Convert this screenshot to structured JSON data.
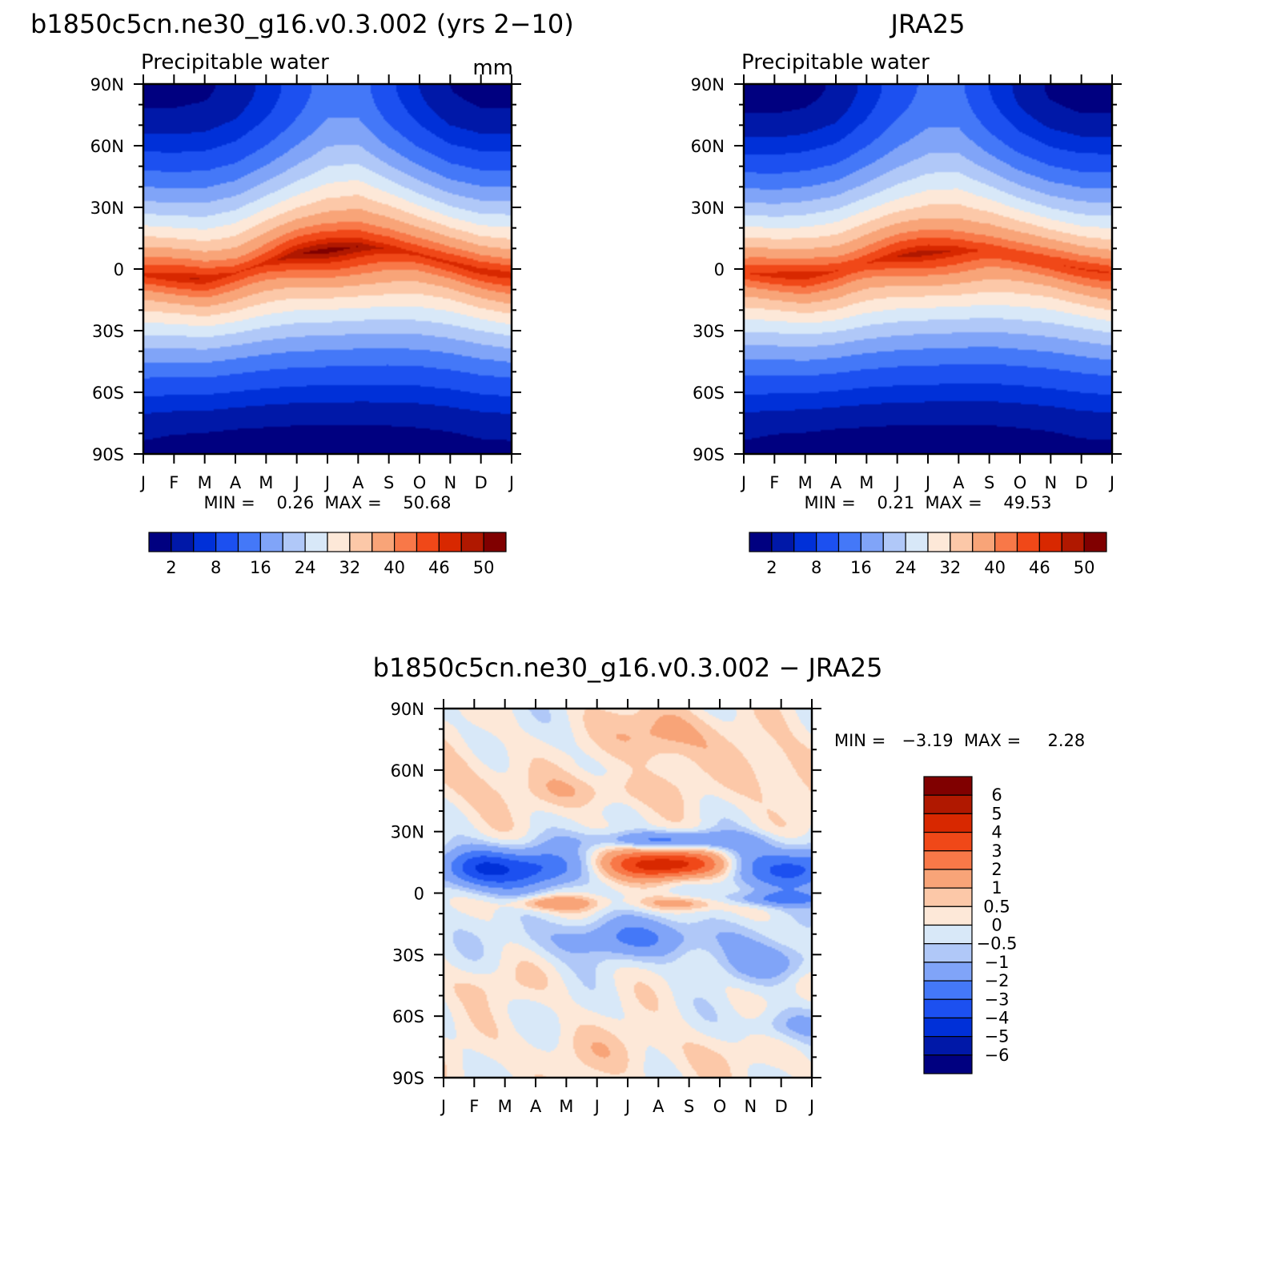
{
  "colors": {
    "seq": [
      "#000080",
      "#0018a8",
      "#0030d8",
      "#1c50f0",
      "#4478f8",
      "#80a4f8",
      "#b0c8f8",
      "#d8e8f8",
      "#fde8d8",
      "#fcc8a8",
      "#f8a478",
      "#f87848",
      "#f04818",
      "#d82800",
      "#b01800",
      "#800000"
    ],
    "diff": [
      "#000080",
      "#0018a8",
      "#0030d8",
      "#1c50f0",
      "#4478f8",
      "#80a4f8",
      "#b0c8f8",
      "#d8e8f8",
      "#fde8d8",
      "#fcc8a8",
      "#f8a478",
      "#f87848",
      "#f04818",
      "#d82800",
      "#b01800",
      "#800000"
    ]
  },
  "months": [
    "J",
    "F",
    "M",
    "A",
    "M",
    "J",
    "J",
    "A",
    "S",
    "O",
    "N",
    "D",
    "J"
  ],
  "lat_labels": [
    "90N",
    "60N",
    "30N",
    "0",
    "30S",
    "60S",
    "90S"
  ],
  "panels": {
    "model": {
      "title": "b1850c5cn.ne30_g16.v0.3.002 (yrs 2−10)",
      "subtitle": "Precipitable water",
      "units": "mm",
      "stats": "MIN =    0.26  MAX =    50.68",
      "colorbar_labels": [
        "2",
        "8",
        "16",
        "24",
        "32",
        "40",
        "46",
        "50"
      ]
    },
    "obs": {
      "title": "JRA25",
      "subtitle": "Precipitable water",
      "units": "",
      "stats": "MIN =    0.21  MAX =    49.53",
      "colorbar_labels": [
        "2",
        "8",
        "16",
        "24",
        "32",
        "40",
        "46",
        "50"
      ]
    },
    "diff": {
      "title": "b1850c5cn.ne30_g16.v0.3.002 − JRA25",
      "stats": "MIN =   −3.19  MAX =     2.28",
      "colorbar_labels": [
        "6",
        "5",
        "4",
        "3",
        "2",
        "1",
        "0.5",
        "0",
        "−0.5",
        "−1",
        "−2",
        "−3",
        "−4",
        "−5",
        "−6"
      ]
    }
  },
  "chart_data": [
    {
      "type": "heatmap",
      "title": "b1850c5cn.ne30_g16.v0.3.002 (yrs 2−10)",
      "subtitle": "Precipitable water",
      "units": "mm",
      "x": [
        "J",
        "F",
        "M",
        "A",
        "M",
        "J",
        "J",
        "A",
        "S",
        "O",
        "N",
        "D",
        "J"
      ],
      "y": [
        "90N",
        "60N",
        "30N",
        "0",
        "30S",
        "60S",
        "90S"
      ],
      "levels": [
        2,
        5,
        8,
        12,
        16,
        20,
        24,
        28,
        32,
        36,
        40,
        43,
        46,
        48,
        50
      ],
      "min": 0.26,
      "max": 50.68,
      "features": {
        "itcz_center_lat": [
          -3,
          -4,
          -5,
          -2,
          3,
          7,
          9,
          11,
          10,
          7,
          3,
          -1,
          -3
        ],
        "itcz_peak": [
          47,
          47,
          47,
          47,
          48,
          49,
          50,
          50.5,
          49,
          47,
          46,
          46,
          47
        ],
        "north_polar_value": [
          1,
          1,
          1.5,
          3,
          6,
          10,
          14,
          14,
          9,
          5,
          2,
          1,
          1
        ],
        "south_polar_value": [
          1.5,
          1,
          0.8,
          0.5,
          0.4,
          0.3,
          0.3,
          0.3,
          0.4,
          0.6,
          0.9,
          1.4,
          1.5
        ]
      }
    },
    {
      "type": "heatmap",
      "title": "JRA25",
      "subtitle": "Precipitable water",
      "x": [
        "J",
        "F",
        "M",
        "A",
        "M",
        "J",
        "J",
        "A",
        "S",
        "O",
        "N",
        "D",
        "J"
      ],
      "y": [
        "90N",
        "60N",
        "30N",
        "0",
        "30S",
        "60S",
        "90S"
      ],
      "levels": [
        2,
        5,
        8,
        12,
        16,
        20,
        24,
        28,
        32,
        36,
        40,
        43,
        46,
        48,
        50
      ],
      "min": 0.21,
      "max": 49.53,
      "features": {
        "itcz_center_lat": [
          -2,
          -3,
          -3,
          -1,
          3,
          6,
          8,
          9,
          9,
          6,
          3,
          0,
          -2
        ],
        "itcz_peak": [
          46,
          46,
          47,
          47,
          47,
          47.5,
          48,
          48,
          47,
          46,
          45,
          45,
          46
        ],
        "north_polar_value": [
          0.5,
          0.5,
          1,
          2.5,
          6,
          10,
          13,
          13,
          8,
          4,
          1.5,
          0.5,
          0.5
        ],
        "south_polar_value": [
          1.5,
          1,
          0.8,
          0.5,
          0.4,
          0.3,
          0.3,
          0.3,
          0.4,
          0.6,
          0.9,
          1.4,
          1.5
        ]
      }
    },
    {
      "type": "heatmap",
      "title": "b1850c5cn.ne30_g16.v0.3.002 − JRA25",
      "x": [
        "J",
        "F",
        "M",
        "A",
        "M",
        "J",
        "J",
        "A",
        "S",
        "O",
        "N",
        "D",
        "J"
      ],
      "y": [
        "90N",
        "60N",
        "30N",
        "0",
        "30S",
        "60S",
        "90S"
      ],
      "levels": [
        -6,
        -5,
        -4,
        -3,
        -2,
        -1,
        -0.5,
        0,
        0.5,
        1,
        2,
        3,
        4,
        5,
        6
      ],
      "min": -3.19,
      "max": 2.28,
      "features": {
        "blobs": [
          {
            "month": 1.0,
            "lat": 12,
            "value": -3.5,
            "sx": 0.9,
            "sy": 7
          },
          {
            "month": 3.0,
            "lat": 12,
            "value": -3.0,
            "sx": 1.1,
            "sy": 7
          },
          {
            "month": 10.2,
            "lat": 12,
            "value": -2.4,
            "sx": 1.0,
            "sy": 8
          },
          {
            "month": 11.8,
            "lat": 12,
            "value": -2.6,
            "sx": 0.8,
            "sy": 7
          },
          {
            "month": 7.0,
            "lat": 14,
            "value": 3.2,
            "sx": 1.3,
            "sy": 5
          },
          {
            "month": 7.9,
            "lat": 14,
            "value": 2.2,
            "sx": 1.2,
            "sy": 5
          },
          {
            "month": 7.4,
            "lat": 26,
            "value": -2.3,
            "sx": 1.8,
            "sy": 3
          },
          {
            "month": 3.5,
            "lat": -5,
            "value": 1.8,
            "sx": 1.0,
            "sy": 2.5
          },
          {
            "month": 7.8,
            "lat": -5,
            "value": 1.6,
            "sx": 1.0,
            "sy": 2.5
          },
          {
            "month": 11.0,
            "lat": -3,
            "value": -1.9,
            "sx": 1.4,
            "sy": 2.5
          },
          {
            "month": 6.3,
            "lat": -22,
            "value": -1.9,
            "sx": 2.3,
            "sy": 7
          },
          {
            "month": 10.7,
            "lat": -34,
            "value": -1.4,
            "sx": 1.2,
            "sy": 6
          },
          {
            "month": 7.0,
            "lat": 78,
            "value": 1.6,
            "sx": 1.0,
            "sy": 10
          },
          {
            "month": 5.2,
            "lat": 50,
            "value": 0.9,
            "sx": 1.6,
            "sy": 6
          },
          {
            "month": 10.9,
            "lat": 60,
            "value": 0.8,
            "sx": 1.3,
            "sy": 14
          },
          {
            "month": 0.9,
            "lat": 55,
            "value": 0.7,
            "sx": 1.2,
            "sy": 12
          },
          {
            "month": 6.0,
            "lat": -78,
            "value": 0.5,
            "sx": 3.5,
            "sy": 9
          },
          {
            "month": 1.5,
            "lat": -45,
            "value": 0.4,
            "sx": 1.6,
            "sy": 6
          },
          {
            "month": 11.2,
            "lat": -65,
            "value": -1.2,
            "sx": 1.0,
            "sy": 6
          }
        ]
      }
    }
  ]
}
